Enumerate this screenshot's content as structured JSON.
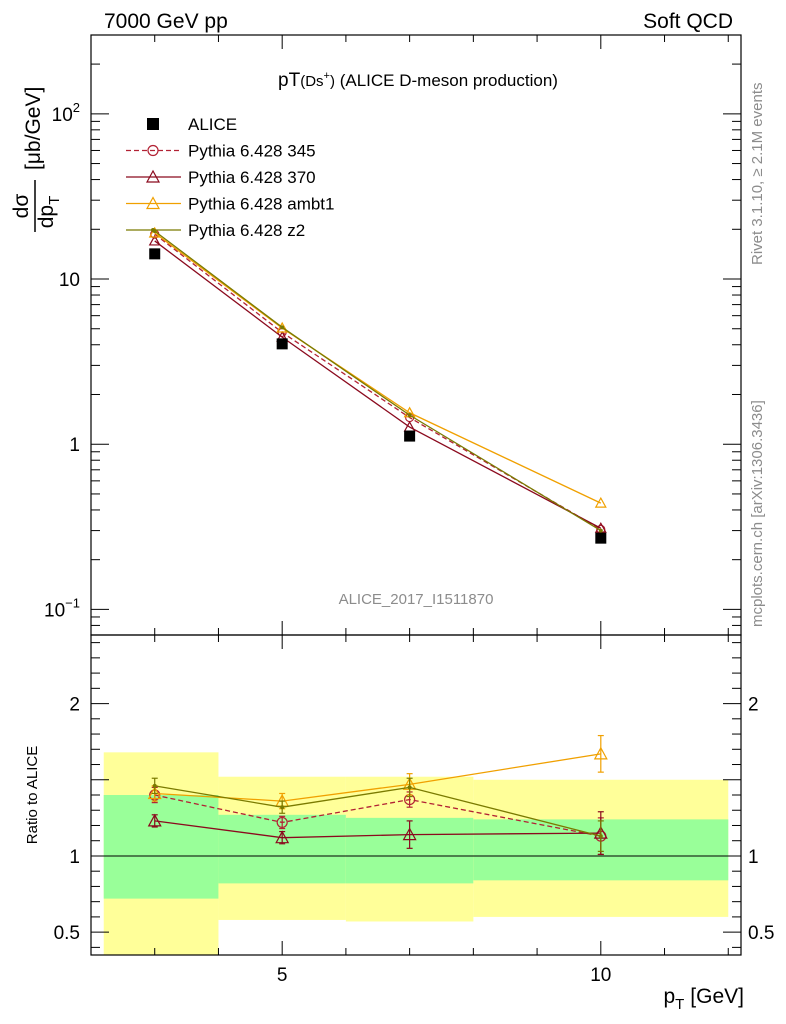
{
  "header": {
    "left": "7000 GeV pp",
    "right": "Soft QCD"
  },
  "plot_title": {
    "main": "pT",
    "sub": "(Ds",
    "sup": "+",
    "close": ")",
    "rest": " (ALICE D-meson production)"
  },
  "watermark": "ALICE_2017_I1511870",
  "side": {
    "rivet": "Rivet 3.1.10, ≥ 2.1M events",
    "mcplots": "mcplots.cern.ch [arXiv:1306.3436]"
  },
  "y_axis_main": {
    "d1": "dσ",
    "d2": "dp",
    "d2sub": "T",
    "unit": "[μb/GeV]"
  },
  "y_axis_ratio": "Ratio to ALICE",
  "x_axis": {
    "label": "p",
    "sub": "T",
    "unit": "[GeV]"
  },
  "legend": [
    {
      "name": "ALICE",
      "color": "#000000",
      "marker": "square",
      "dash": false
    },
    {
      "name": "Pythia 6.428 345",
      "color": "#b22234",
      "marker": "circle",
      "dash": true
    },
    {
      "name": "Pythia 6.428 370",
      "color": "#8b0a1e",
      "marker": "triangle",
      "dash": false
    },
    {
      "name": "Pythia 6.428 ambt1",
      "color": "#f0a000",
      "marker": "triangle",
      "dash": false
    },
    {
      "name": "Pythia 6.428 z2",
      "color": "#7a7a00",
      "marker": "none",
      "dash": false
    }
  ],
  "chart_data": {
    "type": "line",
    "log_y": true,
    "xlim": [
      2,
      12.2
    ],
    "ylim": [
      0.07,
      300
    ],
    "ratio_ylim": [
      0.35,
      2.45
    ],
    "xticks": [
      5,
      10
    ],
    "yticks_main": [
      {
        "v": 0.1,
        "b": "10",
        "e": "−1"
      },
      {
        "v": 1,
        "b": "1",
        "e": ""
      },
      {
        "v": 10,
        "b": "10",
        "e": ""
      },
      {
        "v": 100,
        "b": "10",
        "e": "2"
      }
    ],
    "yticks_ratio": [
      {
        "v": 0.5,
        "t": "0.5"
      },
      {
        "v": 1,
        "t": "1"
      },
      {
        "v": 2,
        "t": "2"
      }
    ],
    "x": [
      3,
      5,
      7,
      10
    ],
    "data": {
      "name": "ALICE",
      "values": [
        14.2,
        4.05,
        1.12,
        0.27
      ]
    },
    "series": [
      {
        "name": "Pythia 6.428 345",
        "values": [
          18.7,
          4.75,
          1.45,
          0.305
        ],
        "ratio": [
          1.4,
          1.22,
          1.37,
          1.13
        ],
        "ratio_err": [
          0.05,
          0.04,
          0.05,
          0.12
        ]
      },
      {
        "name": "Pythia 6.428 370",
        "values": [
          17.0,
          4.45,
          1.27,
          0.31
        ],
        "ratio": [
          1.23,
          1.12,
          1.14,
          1.15
        ],
        "ratio_err": [
          0.04,
          0.04,
          0.09,
          0.14
        ]
      },
      {
        "name": "Pythia 6.428 ambt1",
        "values": [
          19.0,
          5.05,
          1.55,
          0.44
        ],
        "ratio": [
          1.41,
          1.36,
          1.47,
          1.67
        ],
        "ratio_err": [
          0.05,
          0.05,
          0.07,
          0.12
        ]
      },
      {
        "name": "Pythia 6.428 z2",
        "values": [
          19.5,
          5.1,
          1.5,
          0.3
        ],
        "ratio": [
          1.46,
          1.32,
          1.45,
          1.13
        ],
        "ratio_err": [
          0.05,
          0.04,
          0.06,
          0.1
        ]
      }
    ],
    "bands": [
      {
        "x0": 2.2,
        "x1": 4,
        "stat": [
          0.72,
          1.4
        ],
        "tot": [
          0.35,
          1.68
        ]
      },
      {
        "x0": 4,
        "x1": 6,
        "stat": [
          0.82,
          1.27
        ],
        "tot": [
          0.58,
          1.52
        ]
      },
      {
        "x0": 6,
        "x1": 8,
        "stat": [
          0.82,
          1.25
        ],
        "tot": [
          0.57,
          1.52
        ]
      },
      {
        "x0": 8,
        "x1": 12,
        "stat": [
          0.84,
          1.24
        ],
        "tot": [
          0.6,
          1.5
        ]
      }
    ]
  }
}
